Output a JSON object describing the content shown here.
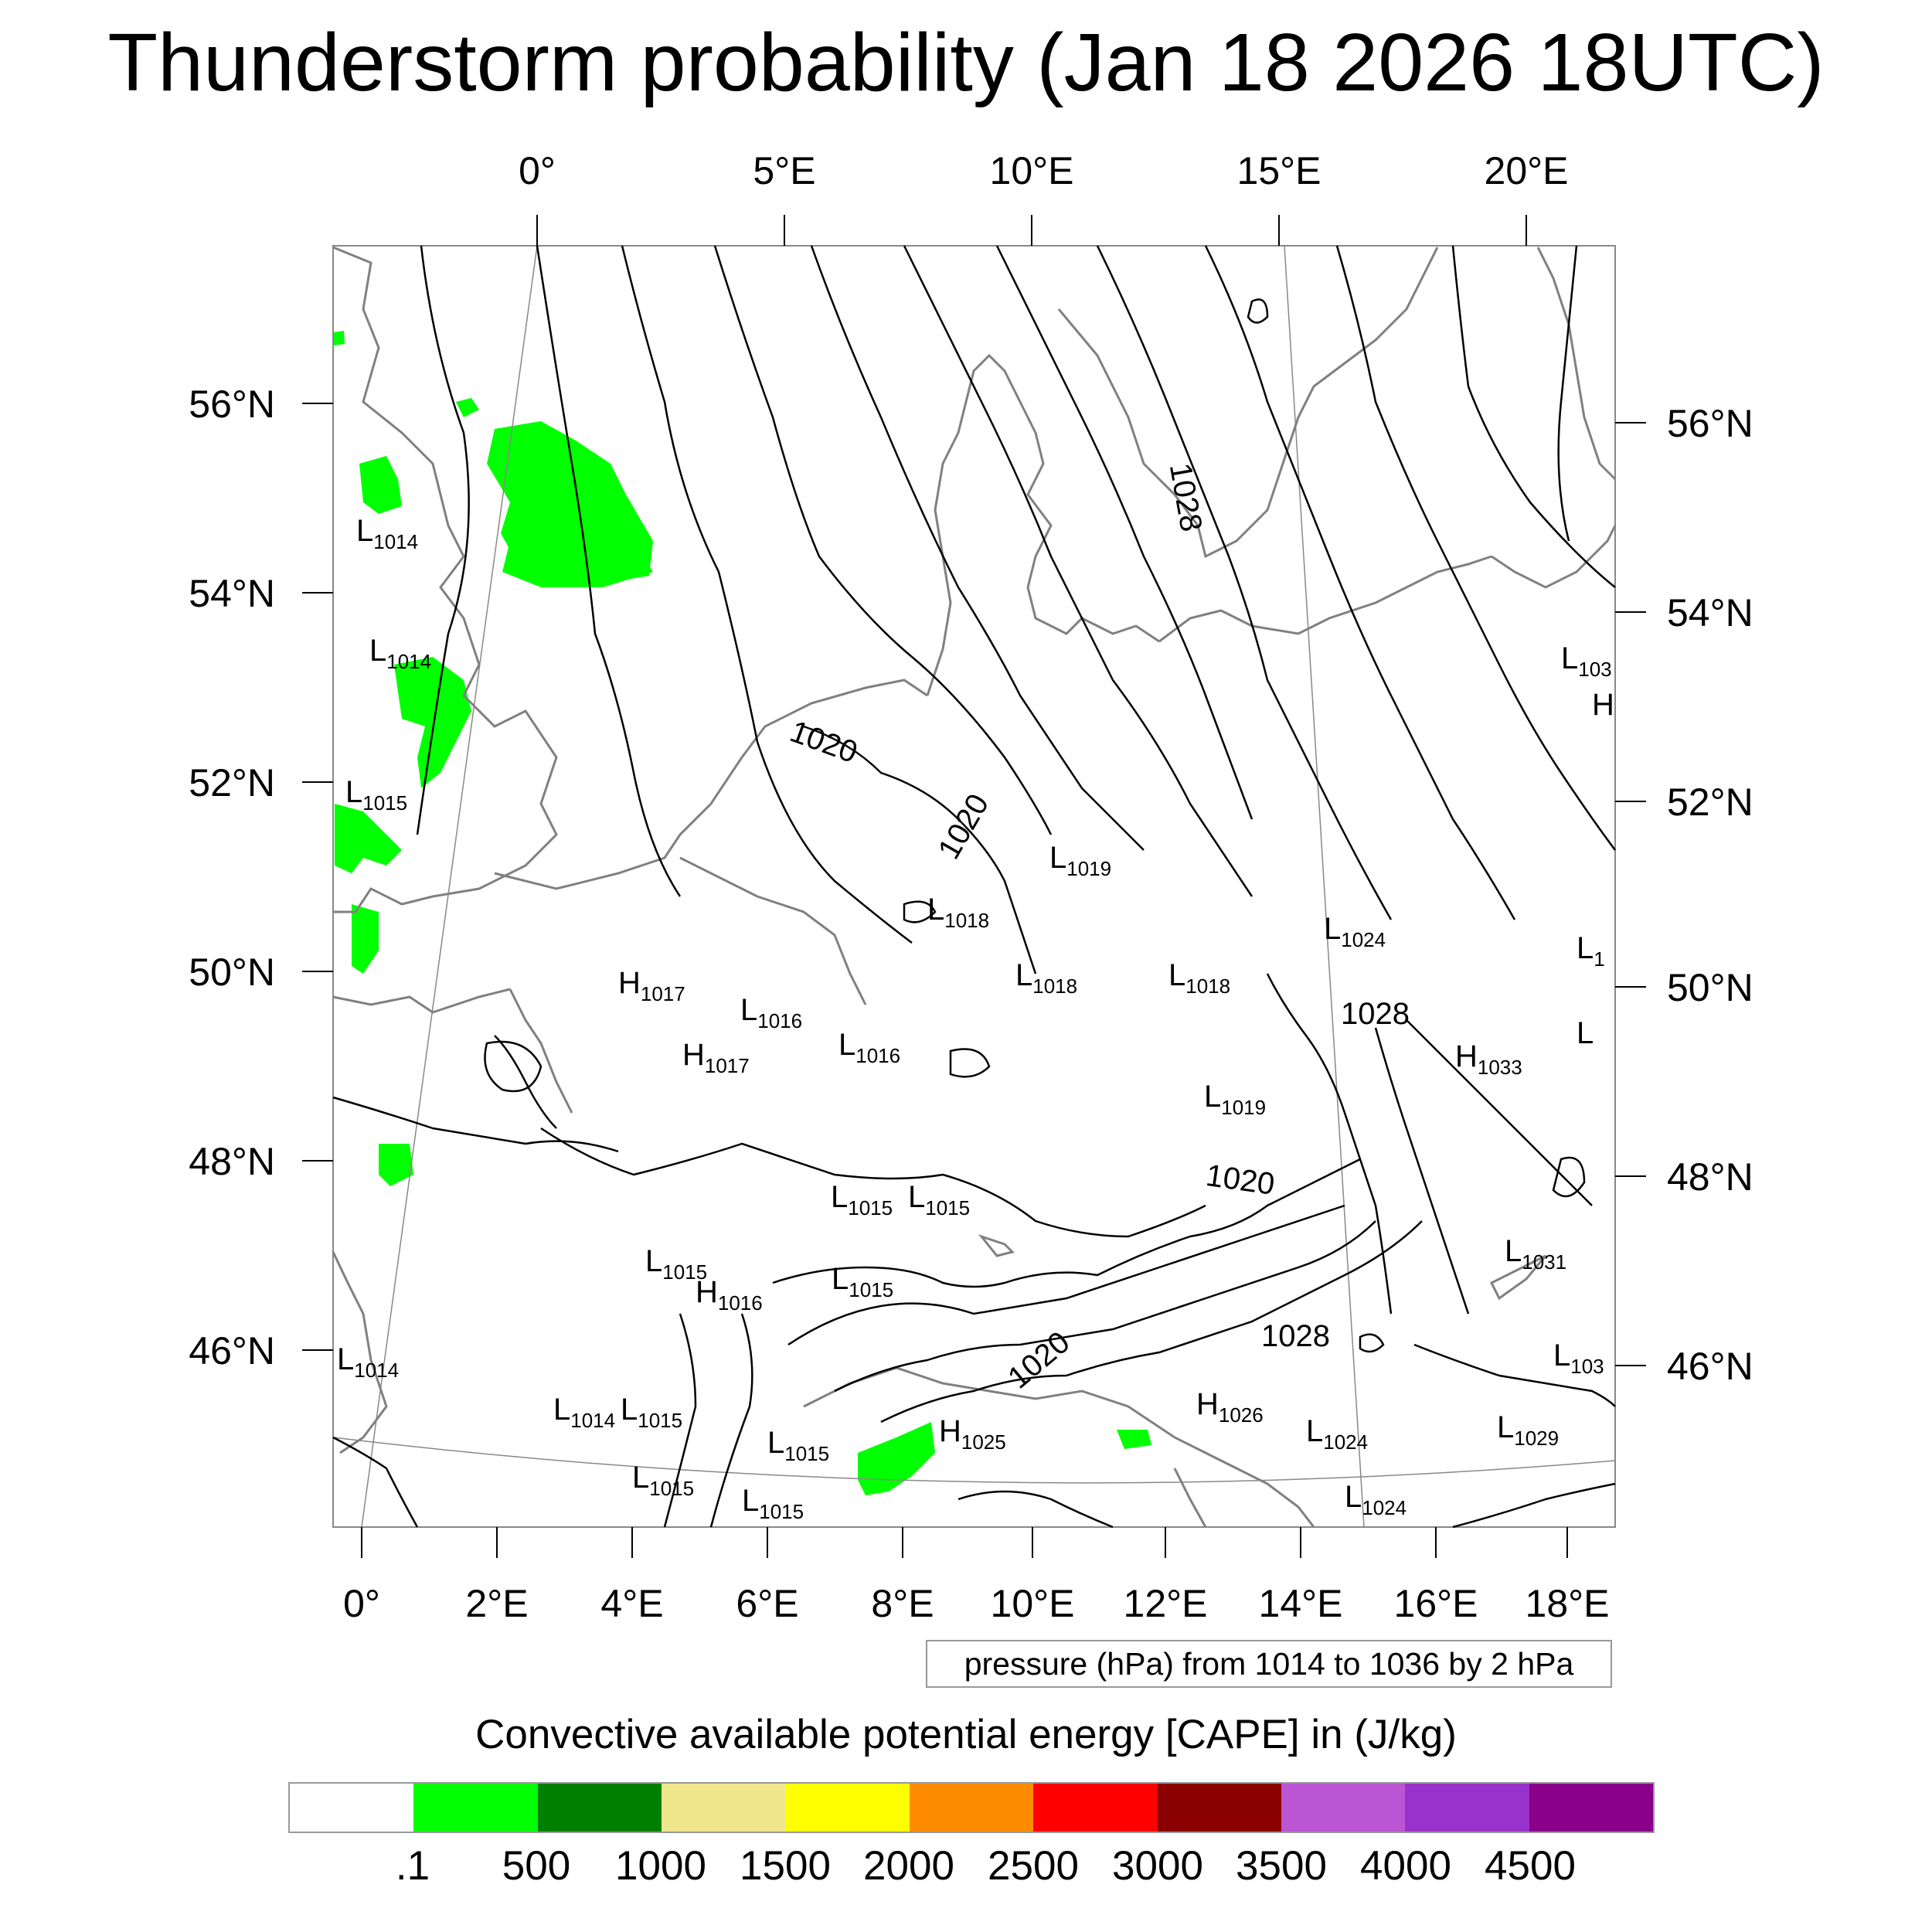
{
  "title": "Thunderstorm probability (Jan 18 2026 18UTC)",
  "map": {
    "top_lon_labels": [
      "0°",
      "5°E",
      "10°E",
      "15°E",
      "20°E"
    ],
    "bottom_lon_labels": [
      "0°",
      "2°E",
      "4°E",
      "6°E",
      "8°E",
      "10°E",
      "12°E",
      "14°E",
      "16°E",
      "18°E"
    ],
    "left_lat_labels": [
      "56°N",
      "54°N",
      "52°N",
      "50°N",
      "48°N",
      "46°N"
    ],
    "right_lat_labels": [
      "56°N",
      "54°N",
      "52°N",
      "50°N",
      "48°N",
      "46°N"
    ],
    "contour_labels": [
      "1020",
      "1020",
      "1020",
      "1020",
      "1028",
      "1028",
      "1028"
    ],
    "pressure_centers": [
      {
        "letter": "L",
        "value": "1014"
      },
      {
        "letter": "L",
        "value": "1014"
      },
      {
        "letter": "L",
        "value": "1015"
      },
      {
        "letter": "L",
        "value": "1019"
      },
      {
        "letter": "L",
        "value": "1018"
      },
      {
        "letter": "L",
        "value": "1024"
      },
      {
        "letter": "L",
        "value": "1018"
      },
      {
        "letter": "L",
        "value": "1018"
      },
      {
        "letter": "H",
        "value": "1017"
      },
      {
        "letter": "L",
        "value": "1016"
      },
      {
        "letter": "H",
        "value": "1017"
      },
      {
        "letter": "L",
        "value": "1016"
      },
      {
        "letter": "H",
        "value": "1033"
      },
      {
        "letter": "L",
        "value": "1019"
      },
      {
        "letter": "L",
        "value": "1015"
      },
      {
        "letter": "L",
        "value": "1015"
      },
      {
        "letter": "L",
        "value": "1031"
      },
      {
        "letter": "L",
        "value": "1015"
      },
      {
        "letter": "H",
        "value": "1016"
      },
      {
        "letter": "L",
        "value": "1015"
      },
      {
        "letter": "L",
        "value": "1014"
      },
      {
        "letter": "L",
        "value": "1014"
      },
      {
        "letter": "L",
        "value": "1015"
      },
      {
        "letter": "H",
        "value": "1026"
      },
      {
        "letter": "H",
        "value": "1025"
      },
      {
        "letter": "L",
        "value": "1015"
      },
      {
        "letter": "L",
        "value": "1024"
      },
      {
        "letter": "L",
        "value": "1029"
      },
      {
        "letter": "L",
        "value": "1015"
      },
      {
        "letter": "L",
        "value": "1015"
      },
      {
        "letter": "L",
        "value": "1024"
      },
      {
        "letter": "L",
        "value": "103"
      },
      {
        "letter": "L",
        "value": "1"
      },
      {
        "letter": "L",
        "value": "103"
      },
      {
        "letter": "L",
        "value": ""
      },
      {
        "letter": "H",
        "value": ""
      }
    ],
    "cape_color": "#00ff00",
    "contour_color": "#000000",
    "coastline_color": "#808080"
  },
  "contour_info": "pressure (hPa) from 1014 to 1036 by 2 hPa",
  "legend": {
    "title": "Convective available potential energy [CAPE] in (J/kg)",
    "colors": [
      "#ffffff",
      "#00ff00",
      "#008000",
      "#f0e68c",
      "#ffff00",
      "#ff8c00",
      "#ff0000",
      "#8b0000",
      "#ba55d3",
      "#9932cc",
      "#8b008b"
    ],
    "labels": [
      ".1",
      "500",
      "1000",
      "1500",
      "2000",
      "2500",
      "3000",
      "3500",
      "4000",
      "4500"
    ]
  }
}
